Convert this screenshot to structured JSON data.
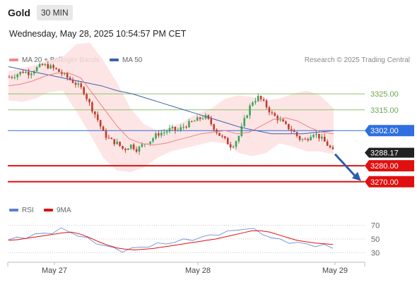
{
  "header": {
    "title": "Gold",
    "timeframe": "30 MIN",
    "date": "Wednesday, May 28, 2025 10:54:57 PM CET"
  },
  "legend": {
    "ma20": {
      "label": "MA 20 + Bollinger Bands",
      "color": "#f08a8a"
    },
    "ma50": {
      "label": "MA 50",
      "color": "#3a62b0"
    },
    "credit": "Research © 2025 Trading Central"
  },
  "rsi_legend": {
    "rsi": {
      "label": "RSI",
      "color": "#5b7fd4"
    },
    "ma9": {
      "label": "9MA",
      "color": "#e01010"
    }
  },
  "chart_data": [
    {
      "type": "candlestick",
      "title": "Gold",
      "timeframe": "30 MIN",
      "x_labels": [
        "May 27",
        "May 28",
        "May 29"
      ],
      "ylim": [
        3258,
        3344
      ],
      "levels": [
        {
          "value": 3325.0,
          "label": "3325.00",
          "color": "#8ac46a",
          "kind": "resistance"
        },
        {
          "value": 3315.0,
          "label": "3315.00",
          "color": "#8ac46a",
          "kind": "resistance"
        },
        {
          "value": 3302.0,
          "label": "3302.00",
          "color": "#2f6fe0",
          "kind": "pivot"
        },
        {
          "value": 3280.0,
          "label": "3280.00",
          "color": "#e01010",
          "kind": "support"
        },
        {
          "value": 3270.0,
          "label": "3270.00",
          "color": "#e01010",
          "kind": "support"
        }
      ],
      "last_price": {
        "value": 3288.17,
        "label": "3288.17"
      },
      "close_path": [
        3335.5,
        3337,
        3339,
        3338,
        3341,
        3343,
        3342,
        3340,
        3337,
        3334,
        3331,
        3327,
        3318,
        3310,
        3300,
        3296,
        3294,
        3290,
        3293,
        3290,
        3294,
        3296,
        3300,
        3301,
        3303,
        3302,
        3305,
        3307,
        3309,
        3311,
        3306,
        3300,
        3296,
        3292,
        3298,
        3310,
        3320,
        3323,
        3318,
        3312,
        3309,
        3305,
        3302,
        3297,
        3296,
        3301,
        3298,
        3294,
        3289
      ],
      "ma50_path": [
        3342,
        3340,
        3338,
        3336,
        3334,
        3332,
        3330,
        3327,
        3325,
        3322,
        3319,
        3316,
        3313,
        3310,
        3307,
        3304,
        3302,
        3300,
        3300,
        3300,
        3301,
        3302
      ],
      "ma20_path": [
        3330,
        3331,
        3333,
        3336,
        3338,
        3338,
        3335,
        3325,
        3315,
        3305,
        3297,
        3294,
        3293,
        3294,
        3296,
        3298,
        3300,
        3301,
        3302,
        3300,
        3301,
        3305,
        3309,
        3310,
        3308,
        3304,
        3301,
        3300
      ],
      "bollinger_upper": [
        3339,
        3341,
        3343,
        3346,
        3348,
        3356,
        3357,
        3346,
        3332,
        3316,
        3306,
        3302,
        3304,
        3308,
        3313,
        3316,
        3322,
        3324,
        3323,
        3321,
        3322,
        3325,
        3327,
        3324,
        3316
      ],
      "bollinger_lower": [
        3321,
        3320,
        3322,
        3326,
        3327,
        3314,
        3300,
        3285,
        3277,
        3276,
        3279,
        3285,
        3289,
        3291,
        3293,
        3295,
        3294,
        3288,
        3286,
        3288,
        3294,
        3292,
        3289,
        3289,
        3287
      ]
    },
    {
      "type": "line",
      "title": "RSI",
      "series": [
        {
          "name": "RSI",
          "color": "#5b7fd4",
          "values": [
            49,
            51,
            53,
            56,
            58,
            60,
            64,
            61,
            55,
            50,
            45,
            40,
            36,
            33,
            35,
            38,
            40,
            42,
            44,
            46,
            48,
            50,
            52,
            55,
            58,
            60,
            63,
            66,
            63,
            58,
            52,
            48,
            46,
            44,
            42,
            41,
            40,
            37
          ]
        },
        {
          "name": "9MA",
          "color": "#e01010",
          "values": [
            48,
            49,
            51,
            53,
            55,
            57,
            59,
            60,
            57,
            52,
            46,
            41,
            37,
            35,
            34,
            35,
            36,
            38,
            40,
            42,
            44,
            46,
            48,
            50,
            53,
            56,
            59,
            62,
            62,
            60,
            56,
            52,
            48,
            46,
            44,
            43,
            42
          ]
        }
      ],
      "yticks": [
        "70",
        "50",
        "30"
      ],
      "ylim": [
        20,
        80
      ]
    }
  ]
}
